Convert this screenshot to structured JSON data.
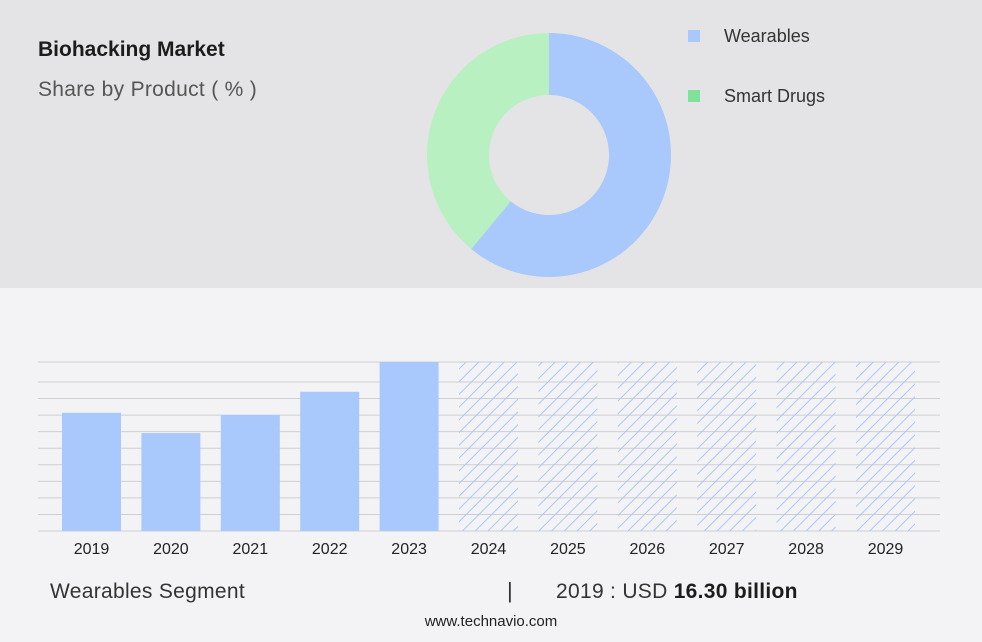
{
  "header": {
    "title": "Biohacking Market",
    "subtitle": "Share by Product ( % )"
  },
  "chart_data": [
    {
      "type": "pie",
      "style": "donut",
      "slices": [
        {
          "name": "Wearables",
          "value": 61,
          "color": "#a9c8fb"
        },
        {
          "name": "Smart Drugs",
          "value": 39,
          "color": "#b9f0c2"
        }
      ],
      "legend": [
        {
          "label": "Wearables",
          "color": "#a9c8fb"
        },
        {
          "label": "Smart Drugs",
          "color": "#7ee29a"
        }
      ],
      "legend_position": "right"
    },
    {
      "type": "bar",
      "categories": [
        "2019",
        "2020",
        "2021",
        "2022",
        "2023",
        "2024",
        "2025",
        "2026",
        "2027",
        "2028",
        "2029"
      ],
      "values": [
        16.3,
        13.5,
        16.0,
        19.2,
        23.3,
        23.3,
        23.3,
        23.3,
        23.3,
        23.3,
        23.3
      ],
      "forecast": [
        false,
        false,
        false,
        false,
        false,
        true,
        true,
        true,
        true,
        true,
        true
      ],
      "ylim": [
        0,
        23.3
      ],
      "grid": true,
      "bar_color": "#a9c8fb",
      "forecast_hatch_color": "#a9c8fb"
    }
  ],
  "footer": {
    "segment": "Wearables Segment",
    "separator": "|",
    "value_prefix": "2019 : USD",
    "value_bold": "16.30 billion"
  },
  "source": "www.technavio.com"
}
